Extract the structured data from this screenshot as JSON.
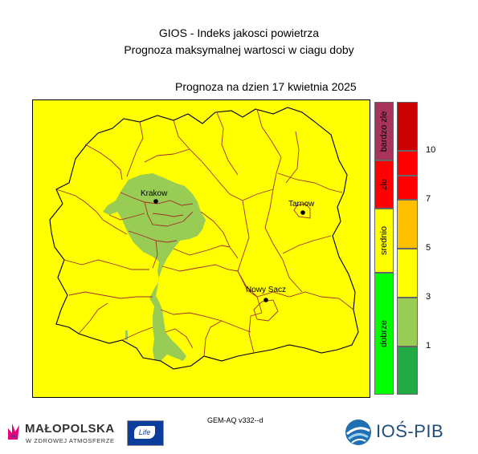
{
  "title": {
    "line1": "GIOS - Indeks jakosci powietrza",
    "line2": "Prognoza maksymalnej wartosci w ciagu doby"
  },
  "forecast_date_label": "Prognoza na dzien  17 kwietnia 2025",
  "cities": [
    {
      "name": "Krakow"
    },
    {
      "name": "Tarnow"
    },
    {
      "name": "Nowy Sacz"
    }
  ],
  "categories": [
    {
      "label": "bardzo zle",
      "color": "#a8345c"
    },
    {
      "label": "zle",
      "color": "#ff0000"
    },
    {
      "label": "srednio",
      "color": "#ffff00"
    },
    {
      "label": "dobrze",
      "color": "#00ff00"
    }
  ],
  "index_scale": {
    "colors": [
      "#cc0000",
      "#ff0000",
      "#ff0000",
      "#ffc000",
      "#ffff00",
      "#99cc55",
      "#22aa44"
    ],
    "tick_labels": [
      "10",
      "7",
      "5",
      "3",
      "1"
    ]
  },
  "map_colors": {
    "background": "#ffff00",
    "good_area": "#99cc55",
    "county_borders": "#a0302a",
    "outline": "#000000"
  },
  "model_label": "GEM-AQ v332--d",
  "logos": {
    "malopolska_name": "MAŁOPOLSKA",
    "malopolska_slogan": "W ZDROWEJ ATMOSFERZE",
    "eu_life": "Life",
    "ios_name": "IOŚ-PIB"
  }
}
